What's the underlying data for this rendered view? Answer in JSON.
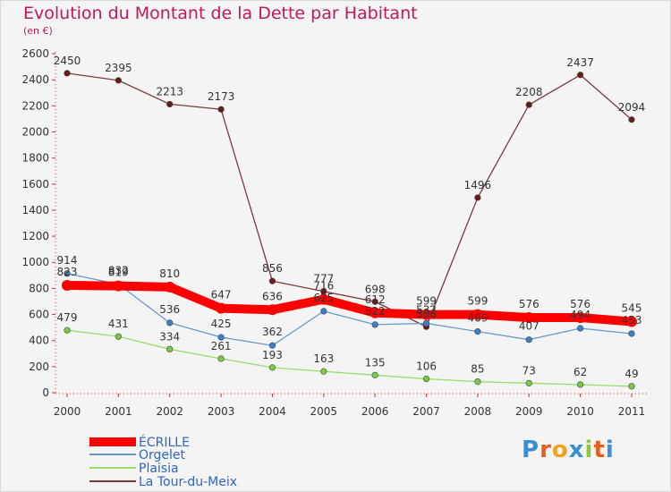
{
  "title": "Evolution du Montant de la Dette par Habitant",
  "subtitle": "(en €)",
  "chart_data": {
    "type": "line",
    "title": "Evolution du Montant de la Dette par Habitant",
    "subtitle": "(en €)",
    "xlabel": "",
    "ylabel": "",
    "x": [
      "2000",
      "2001",
      "2002",
      "2003",
      "2004",
      "2005",
      "2006",
      "2007",
      "2008",
      "2009",
      "2010",
      "2011"
    ],
    "ylim": [
      0,
      2600
    ],
    "yticks": [
      0,
      200,
      400,
      600,
      800,
      1000,
      1200,
      1400,
      1600,
      1800,
      2000,
      2200,
      2400,
      2600
    ],
    "grid": false,
    "legend_position": "bottom-left",
    "series": [
      {
        "name": "ÉCRILLE",
        "color": "#ff0000",
        "marker_color": "#ff0000",
        "values": [
          823,
          819,
          810,
          647,
          636,
          716,
          612,
          599,
          599,
          576,
          576,
          545
        ]
      },
      {
        "name": "Orgelet",
        "color": "#6699cc",
        "marker_color": "#3b7fc4",
        "values": [
          914,
          832,
          536,
          425,
          362,
          625,
          522,
          532,
          469,
          407,
          494,
          453
        ]
      },
      {
        "name": "Plaisia",
        "color": "#99dd66",
        "marker_color": "#77cc44",
        "values": [
          479,
          431,
          334,
          261,
          193,
          163,
          135,
          106,
          85,
          73,
          62,
          49
        ]
      },
      {
        "name": "La Tour-du-Meix",
        "color": "#7a3a3a",
        "marker_color": "#6b1a1a",
        "values": [
          2450,
          2395,
          2213,
          2173,
          856,
          777,
          698,
          506,
          1496,
          2208,
          2437,
          2094
        ]
      }
    ]
  },
  "logo": {
    "letters": [
      "P",
      "r",
      "o",
      "x",
      "i",
      "t",
      "i"
    ],
    "colors": [
      "#3a8fd4",
      "#e85c1e",
      "#f0a21a",
      "#3a8fd4",
      "#8cc63f",
      "#e85c1e",
      "#3a8fd4"
    ]
  }
}
